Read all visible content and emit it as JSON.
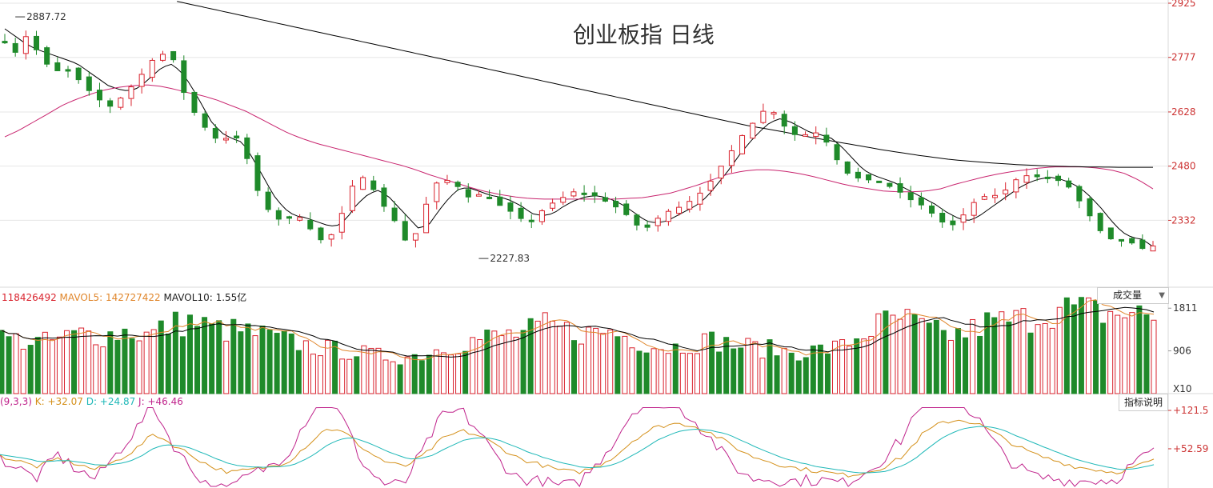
{
  "title": "创业板指 日线",
  "price_axis": {
    "ticks": [
      "2925",
      "2777",
      "2628",
      "2480",
      "2332"
    ],
    "color": "#cc3333"
  },
  "annotations": {
    "high": "2887.72",
    "low": "2227.83"
  },
  "volume_legend": {
    "vol": "118426492",
    "ma5": "MAVOL5: 142727422",
    "ma10": "MAVOL10: 1.55亿",
    "ticks": [
      "1811",
      "906"
    ],
    "unit": "X10"
  },
  "volume_selector": {
    "label": "成交量",
    "caret": "▼"
  },
  "kdj_legend": {
    "params": "(9,3,3)",
    "k": "K: +32.07",
    "d": "D: +24.87",
    "j": "J: +46.46",
    "ticks": [
      "+121.5",
      "+52.59"
    ]
  },
  "indicator_button": {
    "label": "指标说明"
  },
  "colors": {
    "up": "#d9232e",
    "down": "#1f8a2a",
    "ma_short": "#000000",
    "ma_mid": "#c8246e",
    "ma_long": "#000000",
    "k": "#d4901a",
    "d": "#1fb8b8",
    "j": "#c0248c",
    "mavol5": "#e0862b",
    "mavol10": "#000000"
  },
  "chart_data": {
    "type": "candlestick",
    "price_axis_ticks": [
      2925,
      2777,
      2628,
      2480,
      2332
    ],
    "price_range": [
      2180,
      2925
    ],
    "high_point": 2887.72,
    "low_point": 2227.83,
    "close_path": [
      2820,
      2790,
      2835,
      2800,
      2760,
      2740,
      2745,
      2720,
      2690,
      2665,
      2640,
      2660,
      2690,
      2720,
      2765,
      2780,
      2800,
      2700,
      2640,
      2600,
      2560,
      2550,
      2565,
      2545,
      2440,
      2380,
      2340,
      2330,
      2350,
      2330,
      2290,
      2270,
      2310,
      2380,
      2455,
      2445,
      2400,
      2355,
      2320,
      2260,
      2310,
      2400,
      2445,
      2440,
      2420,
      2390,
      2405,
      2390,
      2370,
      2355,
      2335,
      2330,
      2360,
      2380,
      2395,
      2410,
      2405,
      2400,
      2385,
      2370,
      2350,
      2320,
      2310,
      2335,
      2355,
      2365,
      2380,
      2400,
      2430,
      2470,
      2510,
      2555,
      2585,
      2625,
      2640,
      2600,
      2570,
      2560,
      2575,
      2565,
      2520,
      2470,
      2450,
      2445,
      2440,
      2430,
      2420,
      2400,
      2380,
      2370,
      2340,
      2320,
      2320,
      2360,
      2390,
      2400,
      2400,
      2420,
      2450,
      2455,
      2450,
      2445,
      2440,
      2420,
      2380,
      2340,
      2300,
      2280,
      2275,
      2270,
      2255,
      2262
    ],
    "moving_averages": [
      {
        "path": [
          2855,
          2835,
          2815,
          2800,
          2790,
          2780,
          2770,
          2760,
          2740,
          2720,
          2700,
          2690,
          2685,
          2695,
          2720,
          2745,
          2760,
          2740,
          2700,
          2650,
          2600,
          2570,
          2555,
          2545,
          2500,
          2450,
          2400,
          2365,
          2345,
          2340,
          2330,
          2320,
          2315,
          2335,
          2375,
          2400,
          2415,
          2400,
          2370,
          2340,
          2310,
          2320,
          2360,
          2395,
          2420,
          2420,
          2410,
          2400,
          2395,
          2385,
          2370,
          2350,
          2345,
          2350,
          2370,
          2385,
          2395,
          2400,
          2395,
          2385,
          2370,
          2350,
          2330,
          2325,
          2330,
          2345,
          2360,
          2375,
          2400,
          2435,
          2470,
          2510,
          2545,
          2575,
          2600,
          2610,
          2600,
          2585,
          2570,
          2565,
          2555,
          2530,
          2500,
          2470,
          2455,
          2445,
          2435,
          2420,
          2405,
          2390,
          2375,
          2355,
          2340,
          2330,
          2340,
          2360,
          2380,
          2400,
          2420,
          2435,
          2445,
          2450,
          2445,
          2435,
          2420,
          2395,
          2365,
          2330,
          2300,
          2285,
          2280,
          2260
        ]
      },
      {
        "path": [
          2560,
          2578,
          2600,
          2622,
          2645,
          2662,
          2676,
          2688,
          2695,
          2700,
          2702,
          2698,
          2690,
          2680,
          2672,
          2660,
          2645,
          2630,
          2610,
          2590,
          2570,
          2555,
          2542,
          2532,
          2522,
          2512,
          2502,
          2492,
          2482,
          2470,
          2456,
          2444,
          2432,
          2420,
          2410,
          2402,
          2396,
          2392,
          2390,
          2390,
          2390,
          2390,
          2390,
          2390,
          2392,
          2394,
          2400,
          2407,
          2418,
          2430,
          2444,
          2458,
          2466,
          2470,
          2470,
          2466,
          2460,
          2452,
          2442,
          2432,
          2424,
          2418,
          2412,
          2410,
          2410,
          2412,
          2418,
          2430,
          2440,
          2450,
          2458,
          2465,
          2470,
          2475,
          2478,
          2478,
          2478,
          2475,
          2470,
          2460,
          2442,
          2418
        ]
      },
      {
        "path": [
          2930,
          2910,
          2890,
          2870,
          2850,
          2830,
          2810,
          2790,
          2770,
          2750,
          2730,
          2710,
          2690,
          2670,
          2650,
          2630,
          2610,
          2590,
          2574,
          2556,
          2540,
          2524,
          2510,
          2498,
          2490,
          2484,
          2480,
          2478,
          2477,
          2477
        ]
      }
    ]
  },
  "volume_chart": {
    "ticks": [
      1811,
      906
    ],
    "unit": "X10",
    "mavol5": 142727422,
    "mavol10": "1.55亿",
    "level_path": [
      1150,
      1100,
      1050,
      1150,
      1250,
      1200,
      1300,
      1200,
      1400,
      1500,
      1350,
      1300,
      1250,
      1150,
      1050,
      950,
      900,
      850,
      780,
      750,
      800,
      950,
      1050,
      1150,
      1200,
      1250,
      1400,
      1300,
      1250,
      1300,
      1150,
      1000,
      950,
      1050,
      1100,
      1000,
      950,
      900,
      850,
      900,
      950,
      1200,
      1450,
      1550,
      1350,
      1200,
      1250,
      1450,
      1500,
      1550,
      1700,
      1750,
      1700,
      1650,
      1650,
      1600
    ]
  },
  "kdj_chart": {
    "ticks": [
      121.5,
      52.59
    ],
    "k": 32.07,
    "d": 24.87,
    "j": 46.46,
    "k_path": [
      40,
      30,
      20,
      35,
      25,
      15,
      30,
      50,
      80,
      60,
      40,
      20,
      10,
      15,
      20,
      30,
      60,
      90,
      80,
      50,
      30,
      20,
      40,
      70,
      85,
      75,
      55,
      35,
      25,
      15,
      10,
      20,
      40,
      70,
      90,
      98,
      95,
      80,
      60,
      40,
      30,
      20,
      15,
      10,
      5,
      10,
      20,
      40,
      80,
      100,
      105,
      95,
      75,
      55,
      40,
      30,
      20,
      15,
      10,
      20,
      32
    ]
  }
}
